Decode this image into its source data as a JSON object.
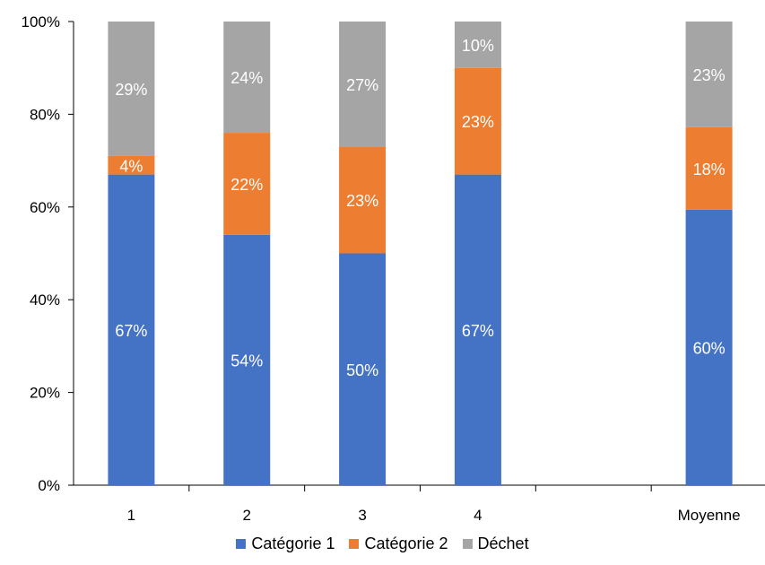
{
  "chart_data": {
    "type": "bar",
    "stacked": true,
    "percent": true,
    "categories": [
      "1",
      "2",
      "3",
      "4",
      "",
      "Moyenne"
    ],
    "series": [
      {
        "name": "Catégorie 1",
        "color": "#4472C4",
        "values": [
          67,
          54,
          50,
          67,
          null,
          60
        ],
        "labels": [
          "67%",
          "54%",
          "50%",
          "67%",
          "",
          "60%"
        ]
      },
      {
        "name": "Catégorie 2",
        "color": "#ED7D31",
        "values": [
          4,
          22,
          23,
          23,
          null,
          18
        ],
        "labels": [
          "4%",
          "22%",
          "23%",
          "23%",
          "",
          "18%"
        ]
      },
      {
        "name": "Déchet",
        "color": "#A5A5A5",
        "values": [
          29,
          24,
          27,
          10,
          null,
          23
        ],
        "labels": [
          "29%",
          "24%",
          "27%",
          "10%",
          "",
          "23%"
        ]
      }
    ],
    "ylim": [
      0,
      100
    ],
    "yticks": [
      "0%",
      "20%",
      "40%",
      "60%",
      "80%",
      "100%"
    ],
    "grid": false,
    "legend_position": "bottom"
  }
}
